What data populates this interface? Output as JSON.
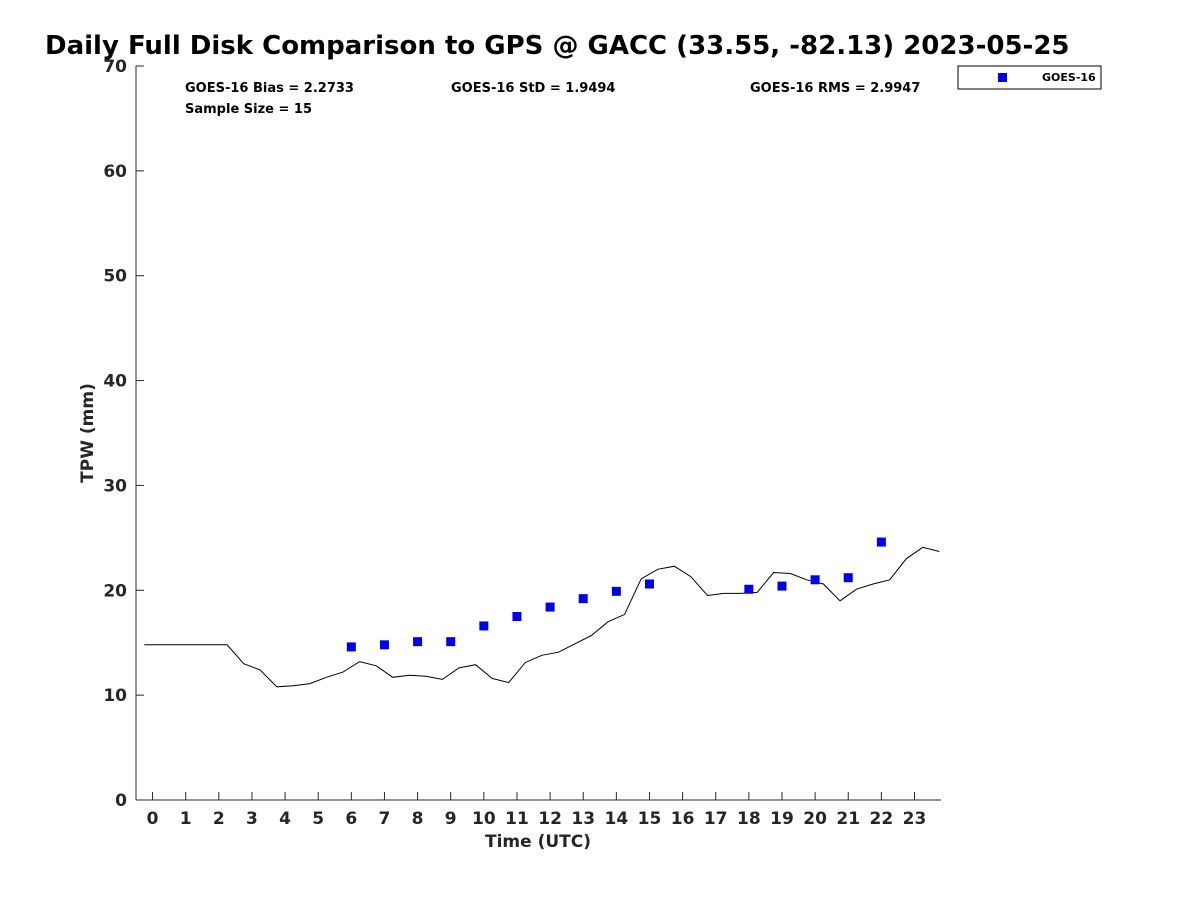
{
  "chart_data": {
    "type": "scatter",
    "title": "Daily Full Disk Comparison to GPS @ GACC (33.55, -82.13) 2023-05-25",
    "xlabel": "Time (UTC)",
    "ylabel": "TPW (mm)",
    "xlim": [
      -0.5,
      23.8
    ],
    "ylim": [
      0,
      70
    ],
    "xticks": [
      0,
      1,
      2,
      3,
      4,
      5,
      6,
      7,
      8,
      9,
      10,
      11,
      12,
      13,
      14,
      15,
      16,
      17,
      18,
      19,
      20,
      21,
      22,
      23
    ],
    "xtick_labels": [
      "0",
      "1",
      "2",
      "3",
      "4",
      "5",
      "6",
      "7",
      "8",
      "9",
      "10",
      "11",
      "12",
      "13",
      "14",
      "15",
      "16",
      "17",
      "18",
      "19",
      "20",
      "21",
      "22",
      "23"
    ],
    "yticks": [
      0,
      10,
      20,
      30,
      40,
      50,
      60,
      70
    ],
    "ytick_labels": [
      "0",
      "10",
      "20",
      "30",
      "40",
      "50",
      "60",
      "70"
    ],
    "grid": false,
    "legend_position": "top-right",
    "stats": {
      "bias": "GOES-16 Bias = 2.2733",
      "std": "GOES-16 StD = 1.9494",
      "rms": "GOES-16 RMS = 2.9947",
      "sample": "Sample Size = 15"
    },
    "series": [
      {
        "name": "GOES-16",
        "type": "scatter",
        "marker": "square",
        "color": "#0000e6",
        "x": [
          6,
          7,
          8,
          9,
          10,
          11,
          12,
          13,
          14,
          15,
          18,
          19,
          20,
          21,
          22
        ],
        "y": [
          14.6,
          14.8,
          15.1,
          15.1,
          16.6,
          17.5,
          18.4,
          19.2,
          19.9,
          20.6,
          20.1,
          20.4,
          21.0,
          21.2,
          24.6
        ]
      },
      {
        "type": "line",
        "color": "#000000",
        "x": [
          -0.25,
          0,
          0.25,
          0.75,
          1.25,
          1.75,
          2.25,
          2.75,
          3.25,
          3.75,
          4.25,
          4.75,
          5.25,
          5.75,
          6.25,
          6.75,
          7.25,
          7.75,
          8.25,
          8.75,
          9.25,
          9.75,
          10.25,
          10.75,
          11.25,
          11.75,
          12.25,
          12.75,
          13.25,
          13.75,
          14.25,
          14.75,
          15.25,
          15.75,
          16.25,
          16.75,
          17.25,
          17.75,
          18.25,
          18.75,
          19.25,
          19.75,
          20.25,
          20.75,
          21.25,
          21.75,
          22.25,
          22.75,
          23.25,
          23.75
        ],
        "y": [
          14.8,
          14.8,
          14.8,
          14.8,
          14.8,
          14.8,
          14.8,
          13.0,
          12.4,
          10.8,
          10.9,
          11.1,
          11.7,
          12.2,
          13.2,
          12.8,
          11.7,
          11.9,
          11.8,
          11.5,
          12.6,
          12.9,
          11.6,
          11.2,
          13.1,
          13.8,
          14.1,
          14.9,
          15.7,
          17.0,
          17.7,
          21.1,
          22.0,
          22.3,
          21.3,
          19.5,
          19.7,
          19.7,
          19.8,
          21.7,
          21.6,
          21.0,
          20.6,
          19.0,
          20.1,
          20.6,
          21.0,
          23.0,
          24.1,
          23.7
        ]
      }
    ]
  }
}
